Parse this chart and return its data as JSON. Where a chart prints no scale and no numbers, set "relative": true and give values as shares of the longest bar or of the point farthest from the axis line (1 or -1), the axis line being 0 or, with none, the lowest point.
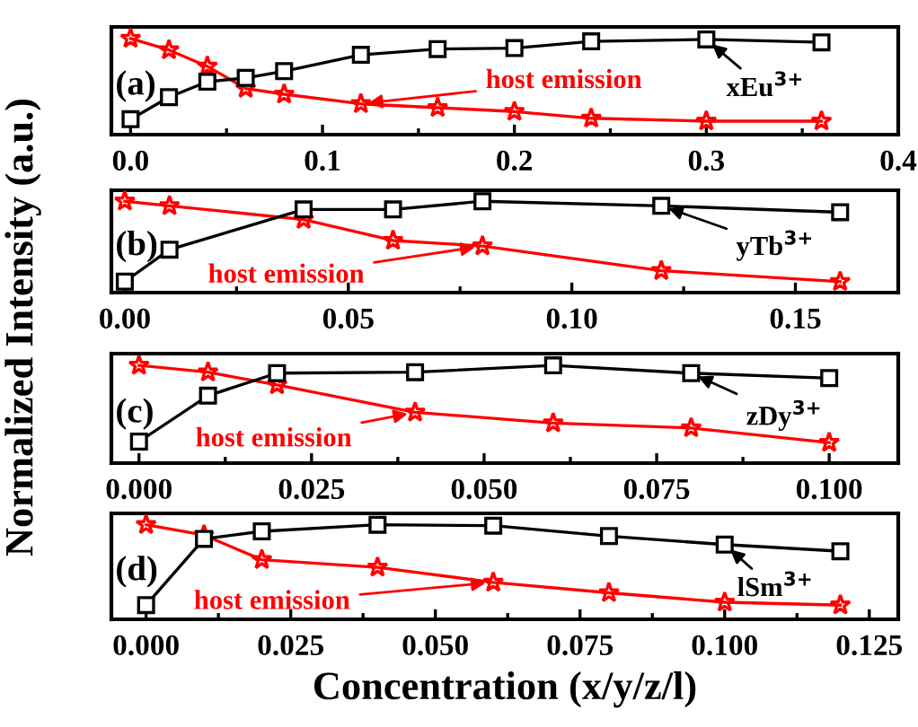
{
  "chart_data": [
    {
      "type": "line",
      "relative": true,
      "ylabel": "Normalized Intensity (a.u.)",
      "annotations": [
        "(a)"
      ],
      "x": [
        0.0,
        0.02,
        0.04,
        0.06,
        0.08,
        0.12,
        0.16,
        0.2,
        0.24,
        0.3,
        0.36
      ],
      "xlim": [
        -0.01,
        0.4
      ],
      "xticks": [
        {
          "value": 0.0,
          "label": "0.0"
        },
        0.1,
        0.2,
        0.3,
        0.4
      ],
      "series": [
        {
          "name": "xEu$^{3+}$",
          "color": "#000000",
          "marker": "square",
          "values": [
            0.16,
            0.39,
            0.55,
            0.59,
            0.66,
            0.83,
            0.89,
            0.9,
            0.97,
            0.99,
            0.96
          ]
        },
        {
          "name": "host emission",
          "color": "#ff0000",
          "marker": "star",
          "values": [
            1.0,
            0.88,
            0.71,
            0.48,
            0.42,
            0.32,
            0.28,
            0.24,
            0.17,
            0.14,
            0.14
          ]
        }
      ]
    },
    {
      "type": "line",
      "relative": true,
      "annotations": [
        "(b)"
      ],
      "x": [
        0.0,
        0.01,
        0.04,
        0.06,
        0.08,
        0.12,
        0.16
      ],
      "xlim": [
        -0.003,
        0.173
      ],
      "xticks": [
        {
          "value": 0.0,
          "label": "0.00"
        },
        0.05,
        {
          "value": 0.1,
          "label": "0.10"
        },
        0.15
      ],
      "series": [
        {
          "name": "yTb$^{3+}$",
          "color": "#000000",
          "marker": "square",
          "values": [
            0.12,
            0.47,
            0.91,
            0.91,
            1.0,
            0.95,
            0.88
          ]
        },
        {
          "name": "host emission",
          "color": "#ff0000",
          "marker": "star",
          "values": [
            1.0,
            0.95,
            0.8,
            0.57,
            0.51,
            0.24,
            0.12
          ]
        }
      ]
    },
    {
      "type": "line",
      "relative": true,
      "annotations": [
        "(c)"
      ],
      "x": [
        0.0,
        0.01,
        0.02,
        0.04,
        0.06,
        0.08,
        0.1
      ],
      "xlim": [
        -0.004,
        0.11
      ],
      "xticks": [
        {
          "value": 0.0,
          "label": "0.000"
        },
        0.025,
        {
          "value": 0.05,
          "label": "0.050"
        },
        0.075,
        {
          "value": 0.1,
          "label": "0.100"
        }
      ],
      "series": [
        {
          "name": "zDy$^{3+}$",
          "color": "#000000",
          "marker": "square",
          "values": [
            0.22,
            0.69,
            0.92,
            0.93,
            1.0,
            0.92,
            0.87
          ]
        },
        {
          "name": "host emission",
          "color": "#ff0000",
          "marker": "star",
          "values": [
            1.0,
            0.93,
            0.8,
            0.52,
            0.41,
            0.36,
            0.21
          ]
        }
      ]
    },
    {
      "type": "line",
      "relative": true,
      "xlabel": "Concentration (x/y/z/l)",
      "annotations": [
        "(d)"
      ],
      "x": [
        0.0,
        0.01,
        0.02,
        0.04,
        0.06,
        0.08,
        0.1,
        0.12
      ],
      "xlim": [
        -0.006,
        0.13
      ],
      "xticks": [
        {
          "value": 0.0,
          "label": "0.000"
        },
        0.025,
        {
          "value": 0.05,
          "label": "0.050"
        },
        0.075,
        {
          "value": 0.1,
          "label": "0.100"
        },
        0.125
      ],
      "series": [
        {
          "name": "lSm$^{3+}$",
          "color": "#000000",
          "marker": "square",
          "values": [
            0.15,
            0.85,
            0.93,
            1.0,
            0.99,
            0.88,
            0.79,
            0.72
          ]
        },
        {
          "name": "host emission",
          "color": "#ff0000",
          "marker": "star",
          "values": [
            1.0,
            0.89,
            0.63,
            0.55,
            0.39,
            0.28,
            0.18,
            0.15
          ]
        }
      ]
    }
  ]
}
